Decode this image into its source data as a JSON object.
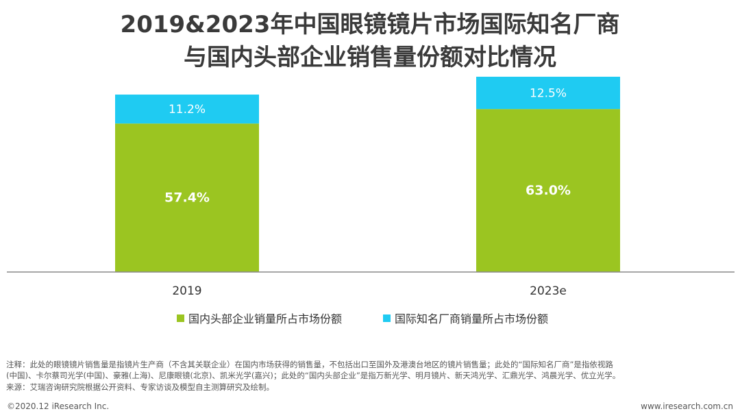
{
  "title_line1": "2019&2023年中国眼镜镜片市场国际知名厂商",
  "title_line2": "与国内头部企业销售量份额对比情况",
  "colors": {
    "domestic": "#9bc521",
    "international": "#1fcbf2",
    "axis": "#888888"
  },
  "chart_data": {
    "type": "bar",
    "stacked": true,
    "categories": [
      "2019",
      "2023e"
    ],
    "series": [
      {
        "name": "国内头部企业销量所占市场份额",
        "values": [
          57.4,
          63.0
        ],
        "labels": [
          "57.4%",
          "63.0%"
        ]
      },
      {
        "name": "国际知名厂商销量所占市场份额",
        "values": [
          11.2,
          12.5
        ],
        "labels": [
          "11.2%",
          "12.5%"
        ]
      }
    ],
    "ylim": [
      0,
      80
    ],
    "xlabel": "",
    "ylabel": ""
  },
  "note": {
    "line1": "注释：此处的眼镜镜片销售量是指镜片生产商（不含其关联企业）在国内市场获得的销售量，不包括出口至国外及港澳台地区的镜片销售量；此处的“国际知名厂商”是指依视路",
    "line2": "(中国)、卡尔蔡司光学(中国)、豪雅(上海)、尼康眼镜(北京)、凯米光学(嘉兴)；此处的“国内头部企业”是指万新光学、明月镜片、新天鸿光学、汇鼎光学、鸿晨光学、优立光学。",
    "line3": "来源：艾瑞咨询研究院根据公开资料、专家访谈及模型自主测算研究及绘制。"
  },
  "footer": {
    "left": "©2020.12 iResearch Inc.",
    "right": "www.iresearch.com.cn"
  }
}
